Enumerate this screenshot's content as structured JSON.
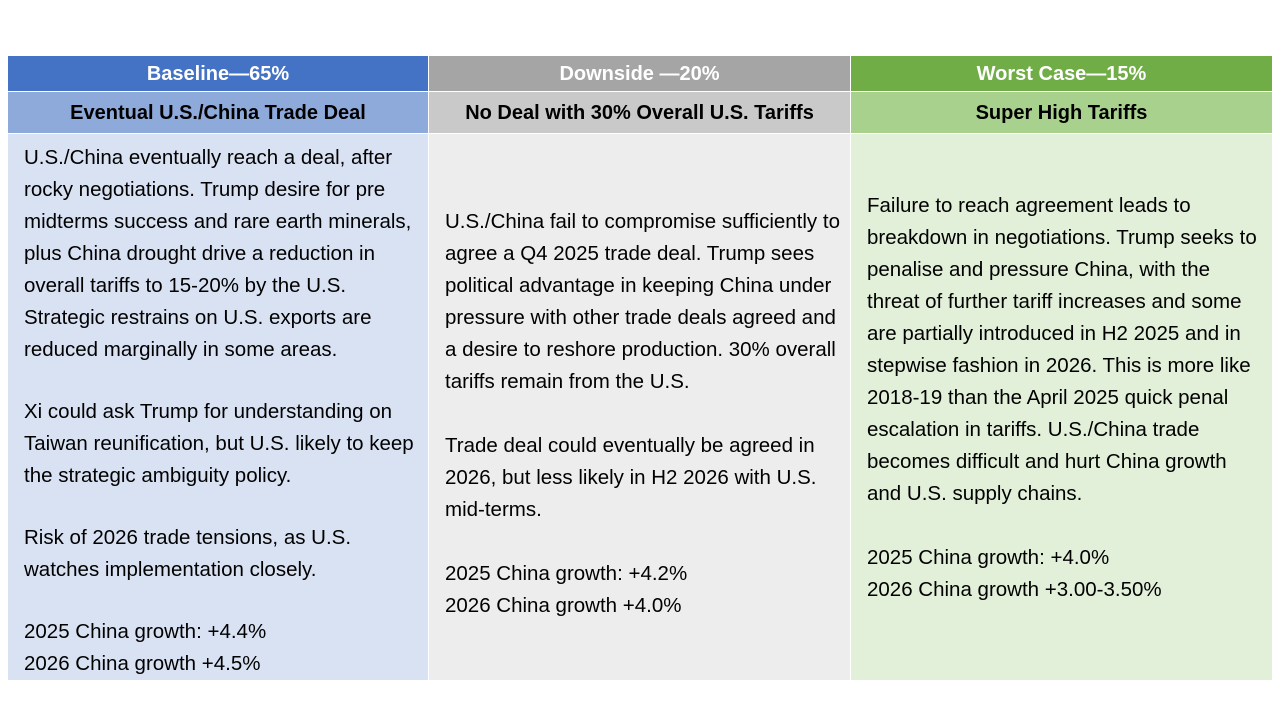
{
  "scenarios": [
    {
      "header": "Baseline—65%",
      "subheader": "Eventual U.S./China Trade Deal",
      "paragraphs": [
        "U.S./China eventually reach a deal, after rocky negotiations. Trump desire for pre midterms success and rare earth minerals, plus China drought drive a reduction in overall tariffs to 15-20% by the U.S. Strategic restrains on U.S. exports are reduced marginally in some areas.",
        "Xi could ask Trump for understanding on Taiwan reunification, but U.S. likely to keep the strategic ambiguity policy.",
        "Risk of 2026 trade tensions, as U.S. watches implementation closely."
      ],
      "growth_2025": "2025 China growth: +4.4%",
      "growth_2026": "2026 China growth +4.5%"
    },
    {
      "header": "Downside —20%",
      "subheader": "No Deal with 30% Overall U.S. Tariffs",
      "paragraphs": [
        "U.S./China fail to compromise sufficiently to agree a Q4 2025 trade deal.  Trump sees political advantage in keeping China under pressure with other trade deals agreed and a desire to reshore production. 30% overall tariffs remain from the U.S.",
        "Trade deal could eventually be agreed in 2026, but less likely in H2 2026 with U.S. mid-terms."
      ],
      "growth_2025": "2025 China growth: +4.2%",
      "growth_2026": "2026 China growth +4.0%"
    },
    {
      "header": "Worst Case—15%",
      "subheader": "Super High Tariffs",
      "paragraphs": [
        "Failure to reach agreement leads to breakdown in negotiations.  Trump seeks to penalise and pressure China, with the threat of further tariff increases and some are partially introduced in H2 2025 and in stepwise fashion in 2026.  This is more like 2018-19 than the April 2025 quick penal escalation in tariffs.  U.S./China trade becomes difficult and hurt China growth and U.S. supply chains."
      ],
      "growth_2025": "2025 China growth: +4.0%",
      "growth_2026": "2026 China growth +3.00-3.50%"
    }
  ],
  "colors": {
    "baseline_header": "#4472c4",
    "downside_header": "#a5a5a5",
    "worst_header": "#70ad47"
  }
}
